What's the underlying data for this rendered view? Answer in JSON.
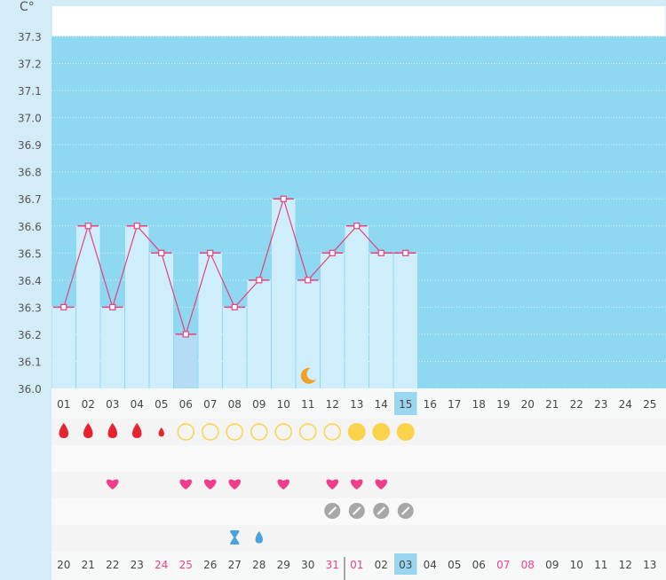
{
  "chart_data": {
    "type": "line",
    "title": "",
    "unit_label": "C°",
    "ylim": [
      36.0,
      37.3
    ],
    "y_ticks": [
      "37.3",
      "37.2",
      "37.1",
      "37.0",
      "36.9",
      "36.8",
      "36.7",
      "36.6",
      "36.5",
      "36.4",
      "36.3",
      "36.2",
      "36.1",
      "36.0"
    ],
    "days": [
      "01",
      "02",
      "03",
      "04",
      "05",
      "06",
      "07",
      "08",
      "09",
      "10",
      "11",
      "12",
      "13",
      "14",
      "15",
      "16",
      "17",
      "18",
      "19",
      "20",
      "21",
      "22",
      "23",
      "24",
      "25"
    ],
    "today_day": "15",
    "series": [
      {
        "name": "Temperature",
        "values": [
          36.3,
          36.6,
          36.3,
          36.6,
          36.5,
          36.2,
          36.5,
          36.3,
          36.4,
          36.7,
          36.4,
          36.5,
          36.6,
          36.5,
          36.5
        ]
      }
    ],
    "bar_shade": [
      "light",
      "light",
      "light",
      "light",
      "light",
      "dark",
      "light",
      "light",
      "light",
      "light",
      "light",
      "light",
      "light",
      "light",
      "light"
    ],
    "markers": {
      "moon_day": "11",
      "period": [
        "heavy",
        "heavy",
        "heavy",
        "heavy",
        "light",
        "",
        "",
        "",
        "",
        "",
        "",
        "",
        "",
        "",
        ""
      ],
      "cervical": [
        "",
        "",
        "",
        "",
        "",
        "empty",
        "empty",
        "empty",
        "empty",
        "empty",
        "empty",
        "empty",
        "filled",
        "filled",
        "filled"
      ],
      "hearts": [
        "",
        "",
        "yes",
        "",
        "",
        "yes",
        "yes",
        "yes",
        "",
        "yes",
        "",
        "yes",
        "yes",
        "yes",
        ""
      ],
      "pills": [
        "",
        "",
        "",
        "",
        "",
        "",
        "",
        "",
        "",
        "",
        "",
        "yes",
        "yes",
        "yes",
        "yes"
      ],
      "test_day": "08",
      "drop_day": "09"
    },
    "calendar_dates": [
      "20",
      "21",
      "22",
      "23",
      "24",
      "25",
      "26",
      "27",
      "28",
      "29",
      "30",
      "31",
      "01",
      "02",
      "03",
      "04",
      "05",
      "06",
      "07",
      "08",
      "09",
      "10",
      "11",
      "12",
      "13"
    ],
    "calendar_red": [
      "24",
      "25",
      "31",
      "01",
      "07",
      "08"
    ],
    "calendar_today": "03",
    "colors": {
      "sky": "#8fd8f2",
      "bar_light": "#cfeefc",
      "bar_dark": "#b2ddf4",
      "line": "#e8407a",
      "today": "#9ad6ef",
      "red": "#e8222e",
      "yellow": "#fbd34a",
      "pink": "#ef3f8c",
      "gray": "#a7a7a7",
      "blue": "#4aa3dc",
      "orange": "#f2a126"
    }
  }
}
